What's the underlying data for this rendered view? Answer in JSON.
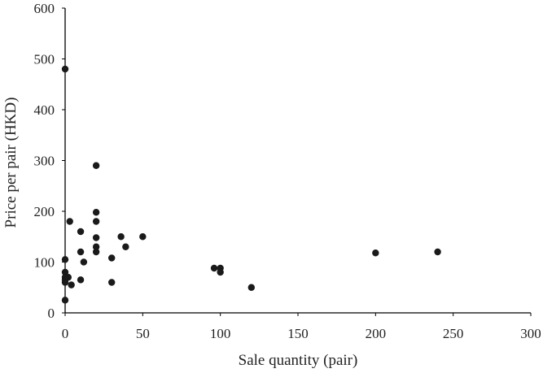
{
  "chart_data": {
    "type": "scatter",
    "title": "",
    "xlabel": "Sale quantity (pair)",
    "ylabel": "Price per pair (HKD)",
    "xlim": [
      0,
      300
    ],
    "ylim": [
      0,
      600
    ],
    "xticks": [
      "0",
      "50",
      "100",
      "150",
      "200",
      "250",
      "300"
    ],
    "yticks": [
      "0",
      "100",
      "200",
      "300",
      "400",
      "500",
      "600"
    ],
    "grid": false,
    "series": [
      {
        "points": [
          {
            "x": 0,
            "y": 480
          },
          {
            "x": 0,
            "y": 105
          },
          {
            "x": 0,
            "y": 80
          },
          {
            "x": 0,
            "y": 70
          },
          {
            "x": 0,
            "y": 65
          },
          {
            "x": 0,
            "y": 60
          },
          {
            "x": 0,
            "y": 25
          },
          {
            "x": 2,
            "y": 70
          },
          {
            "x": 3,
            "y": 180
          },
          {
            "x": 4,
            "y": 55
          },
          {
            "x": 10,
            "y": 160
          },
          {
            "x": 10,
            "y": 120
          },
          {
            "x": 10,
            "y": 65
          },
          {
            "x": 12,
            "y": 100
          },
          {
            "x": 20,
            "y": 290
          },
          {
            "x": 20,
            "y": 198
          },
          {
            "x": 20,
            "y": 180
          },
          {
            "x": 20,
            "y": 148
          },
          {
            "x": 20,
            "y": 130
          },
          {
            "x": 20,
            "y": 120
          },
          {
            "x": 30,
            "y": 108
          },
          {
            "x": 30,
            "y": 60
          },
          {
            "x": 36,
            "y": 150
          },
          {
            "x": 39,
            "y": 130
          },
          {
            "x": 50,
            "y": 150
          },
          {
            "x": 96,
            "y": 88
          },
          {
            "x": 100,
            "y": 88
          },
          {
            "x": 100,
            "y": 80
          },
          {
            "x": 120,
            "y": 50
          },
          {
            "x": 200,
            "y": 118
          },
          {
            "x": 240,
            "y": 120
          }
        ]
      }
    ]
  }
}
